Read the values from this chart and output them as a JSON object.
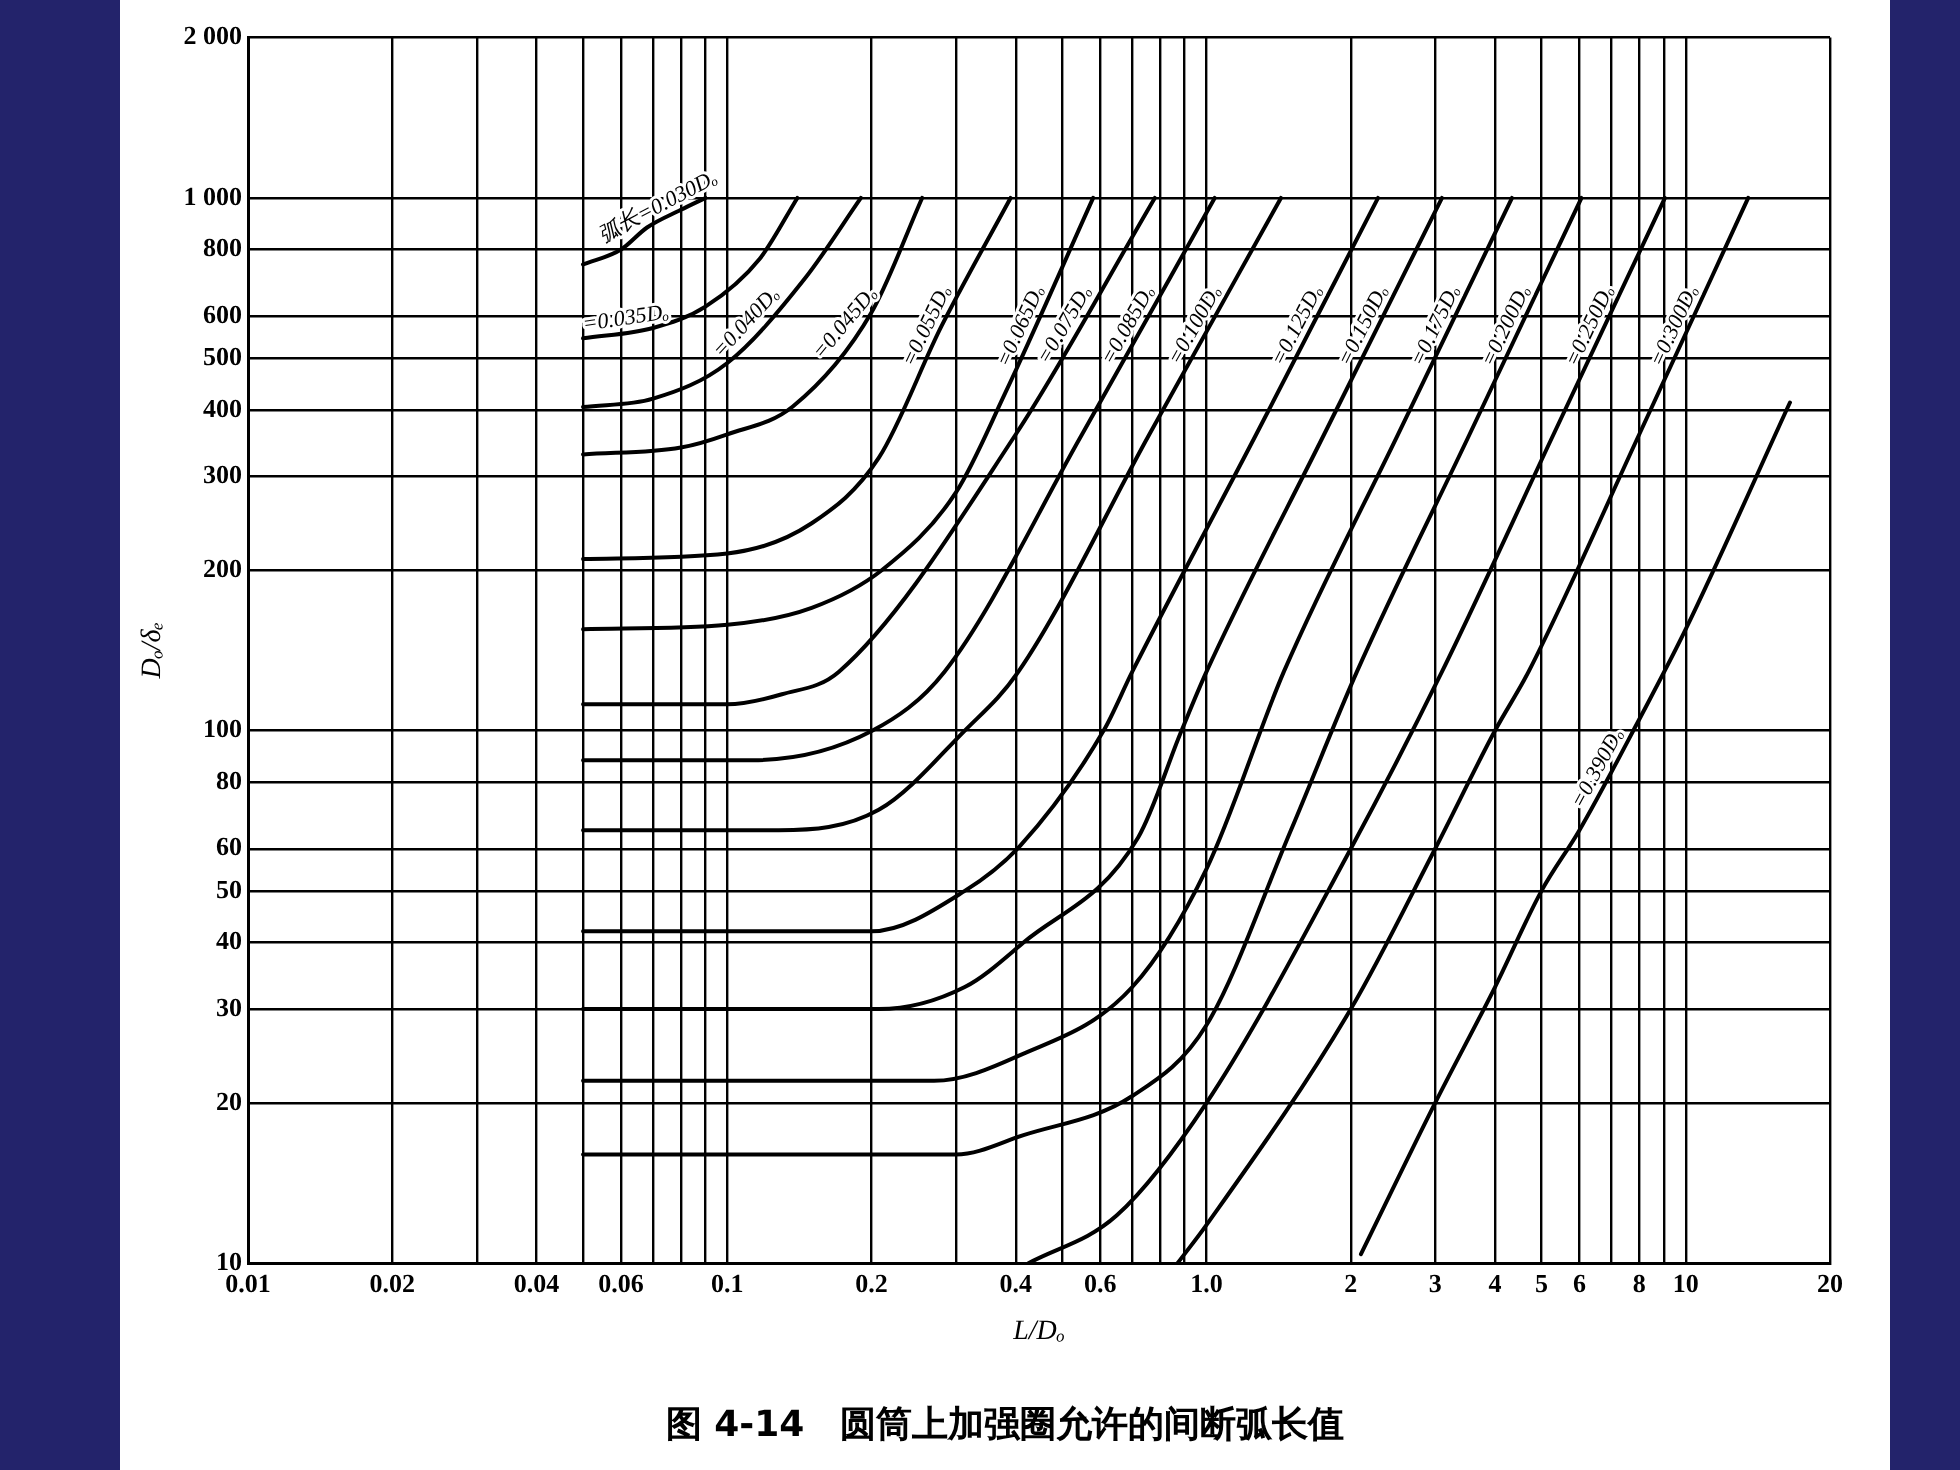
{
  "chart_data": {
    "type": "line",
    "title": "图 4-14　圆筒上加强圈允许的间断弧长值",
    "xlabel": "L/Dₒ",
    "ylabel": "Dₒ/δₑ",
    "log": "xy",
    "grid": true,
    "legend": false,
    "marker": "none",
    "line_style": "solid",
    "xlim": [
      0.01,
      20
    ],
    "ylim": [
      10,
      2000
    ],
    "xticks": [
      0.01,
      0.02,
      {
        "value": 0.03,
        "label": null
      },
      0.04,
      {
        "value": 0.05,
        "label": null
      },
      0.06,
      {
        "value": 0.07,
        "label": null
      },
      {
        "value": 0.08,
        "label": null
      },
      {
        "value": 0.09,
        "label": null
      },
      0.1,
      0.2,
      {
        "value": 0.3,
        "label": null
      },
      0.4,
      {
        "value": 0.5,
        "label": null
      },
      0.6,
      {
        "value": 0.7,
        "label": null
      },
      {
        "value": 0.8,
        "label": null
      },
      {
        "value": 0.9,
        "label": null
      },
      {
        "value": 1,
        "label": "1.0"
      },
      2,
      3,
      4,
      5,
      6,
      {
        "value": 7,
        "label": null
      },
      8,
      {
        "value": 9,
        "label": null
      },
      10,
      20
    ],
    "yticks": [
      10,
      20,
      30,
      40,
      50,
      60,
      80,
      100,
      200,
      300,
      400,
      500,
      600,
      800,
      {
        "value": 1000,
        "label": "1 000"
      },
      {
        "value": 2000,
        "label": "2 000"
      }
    ],
    "series": [
      {
        "name": "弧长=0.030Dₒ",
        "color": "#000000",
        "x": [
          0.05,
          0.06,
          0.068,
          0.08,
          0.09
        ],
        "values": [
          750,
          800,
          880,
          950,
          1000
        ]
      },
      {
        "name": "=0.035Dₒ",
        "color": "#000000",
        "x": [
          0.05,
          0.07,
          0.09,
          0.117,
          0.14
        ],
        "values": [
          545,
          570,
          625,
          770,
          1000
        ]
      },
      {
        "name": "=0.040Dₒ",
        "color": "#000000",
        "x": [
          0.05,
          0.07,
          0.1,
          0.145,
          0.19
        ],
        "values": [
          405,
          420,
          490,
          705,
          1000
        ]
      },
      {
        "name": "=0.045Dₒ",
        "color": "#000000",
        "x": [
          0.05,
          0.08,
          0.1,
          0.137,
          0.2,
          0.255
        ],
        "values": [
          330,
          340,
          360,
          406,
          610,
          1000
        ]
      },
      {
        "name": "=0.055Dₒ",
        "color": "#000000",
        "x": [
          0.05,
          0.1,
          0.15,
          0.207,
          0.28,
          0.39
        ],
        "values": [
          210,
          215,
          245,
          325,
          575,
          1000
        ]
      },
      {
        "name": "=0.065Dₒ",
        "color": "#000000",
        "x": [
          0.05,
          0.1,
          0.15,
          0.21,
          0.3,
          0.38,
          0.58
        ],
        "values": [
          155,
          158,
          170,
          200,
          280,
          430,
          1000
        ]
      },
      {
        "name": "=0.075Dₒ",
        "color": "#000000",
        "x": [
          0.05,
          0.1,
          0.13,
          0.171,
          0.4,
          0.78
        ],
        "values": [
          112,
          112,
          117,
          129,
          360,
          1000
        ]
      },
      {
        "name": "=0.085Dₒ",
        "color": "#000000",
        "x": [
          0.05,
          0.113,
          0.201,
          0.284,
          0.55,
          1.04
        ],
        "values": [
          88,
          88,
          100,
          129,
          360,
          1000
        ]
      },
      {
        "name": "=0.100Dₒ",
        "color": "#000000",
        "x": [
          0.05,
          0.128,
          0.207,
          0.313,
          0.405,
          0.76,
          1.43
        ],
        "values": [
          65,
          65,
          71,
          100,
          129,
          360,
          1000
        ]
      },
      {
        "name": "=0.125Dₒ",
        "color": "#000000",
        "x": [
          0.05,
          0.2,
          0.313,
          0.41,
          0.61,
          0.7,
          1.27,
          2.28
        ],
        "values": [
          42,
          42,
          50,
          61,
          100,
          129,
          360,
          1000
        ]
      },
      {
        "name": "=0.150Dₒ",
        "color": "#000000",
        "x": [
          0.05,
          0.207,
          0.313,
          0.415,
          0.72,
          0.887,
          1.0,
          1.76,
          3.1
        ],
        "values": [
          30,
          30,
          33,
          40,
          63,
          100,
          129,
          360,
          1000
        ]
      },
      {
        "name": "=0.175Dₒ",
        "color": "#000000",
        "x": [
          0.05,
          0.27,
          0.405,
          0.7,
          1.0,
          1.45,
          2.51,
          4.34
        ],
        "values": [
          22,
          22,
          24.5,
          33,
          55,
          129,
          360,
          1000
        ]
      },
      {
        "name": "=0.200Dₒ",
        "color": "#000000",
        "x": [
          0.05,
          0.3,
          0.415,
          0.7,
          1.0,
          1.5,
          2.06,
          3.54,
          6.06
        ],
        "values": [
          16,
          16,
          17.4,
          20.6,
          28,
          65,
          129,
          360,
          1000
        ]
      },
      {
        "name": "=0.250Dₒ",
        "color": "#000000",
        "x": [
          0.425,
          0.65,
          1.0,
          2.0,
          3.1,
          5.3,
          9.05
        ],
        "values": [
          10,
          12.3,
          20,
          60,
          129,
          360,
          1000
        ]
      },
      {
        "name": "=0.300Dₒ",
        "color": "#000000",
        "x": [
          0.87,
          1.0,
          2.0,
          3.0,
          4.0,
          4.7,
          8.0,
          13.5
        ],
        "values": [
          10,
          11.8,
          30,
          60,
          100,
          129,
          360,
          1000
        ]
      },
      {
        "name": "=0.390Dₒ",
        "color": "#000000",
        "x": [
          2.1,
          3.0,
          4.0,
          5.0,
          6.0,
          8.0,
          10.0,
          16.5
        ],
        "values": [
          10.4,
          20,
          33,
          50,
          65,
          105,
          155,
          413
        ]
      }
    ]
  }
}
